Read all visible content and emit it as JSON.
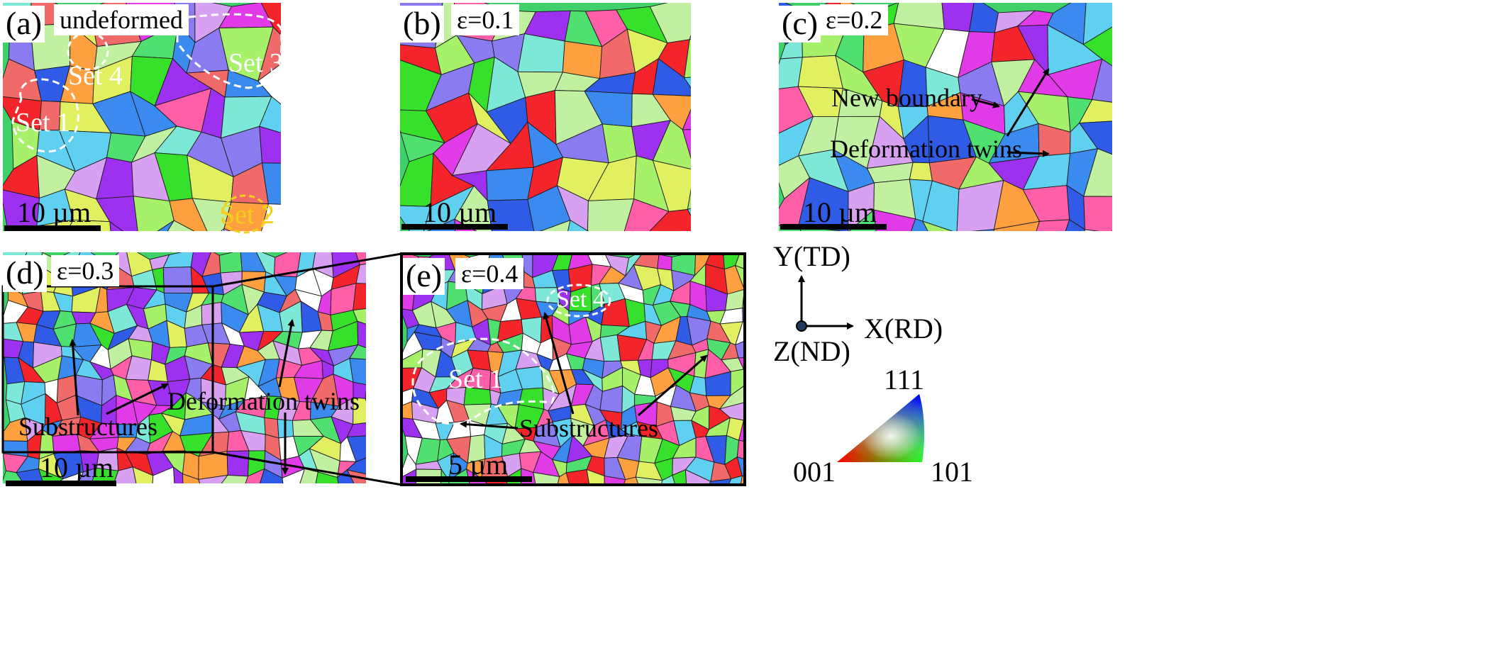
{
  "panels": {
    "a": {
      "label": "(a)",
      "strain": "undeformed",
      "scale": "10 µm",
      "sets": [
        "Set 1",
        "Set 2",
        "Set 3",
        "Set 4"
      ]
    },
    "b": {
      "label": "(b)",
      "strain": "ε=0.1",
      "scale": "10 µm"
    },
    "c": {
      "label": "(c)",
      "strain": "ε=0.2",
      "scale": "10 µm",
      "annotations": [
        "New boundary",
        "Deformation twins"
      ]
    },
    "d": {
      "label": "(d)",
      "strain": "ε=0.3",
      "scale": "10 µm",
      "annotations": [
        "Substructures",
        "Deformation twins"
      ]
    },
    "e": {
      "label": "(e)",
      "strain": "ε=0.4",
      "scale": "5 µm",
      "sets": [
        "Set 4",
        "Set 1"
      ],
      "annotations": [
        "Substructures"
      ]
    }
  },
  "axes": {
    "y": "Y(TD)",
    "x": "X(RD)",
    "z": "Z(ND)"
  },
  "ipf_key": {
    "top": "111",
    "left": "001",
    "right": "101"
  },
  "colors": {
    "red": "#f4252a",
    "green": "#37e02a",
    "blue": "#2f5be6",
    "magenta": "#e03be6",
    "purple": "#9e30f0",
    "cyan": "#7ee8d8"
  }
}
